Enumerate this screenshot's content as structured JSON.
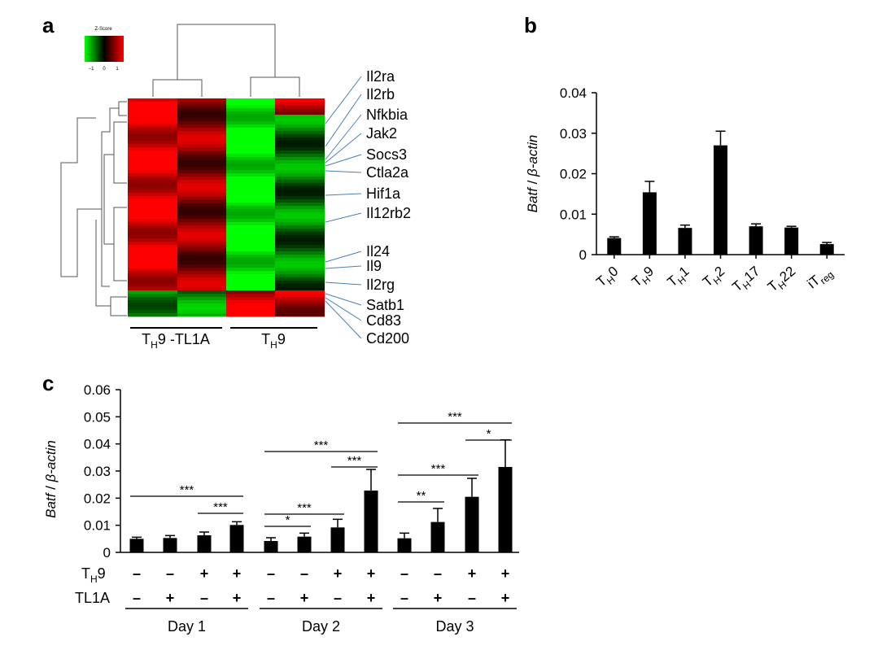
{
  "panels": {
    "a": "a",
    "b": "b",
    "c": "c"
  },
  "heatmap": {
    "legend_title": "Z-Score",
    "legend_ticks": [
      "−1",
      "0",
      "1"
    ],
    "colors": {
      "low": "#00ff00",
      "mid": "#000000",
      "high": "#ff0000"
    },
    "group_labels": [
      {
        "main": "T",
        "sub": "H",
        "rest": "9 -TL1A"
      },
      {
        "main": "T",
        "sub": "H",
        "rest": "9"
      }
    ],
    "genes": [
      "Il2ra",
      "Il2rb",
      "Nfkbia",
      "Jak2",
      "Socs3",
      "Ctla2a",
      "Hif1a",
      "Il12rb2",
      "Il24",
      "Il9",
      "Il2rg",
      "Satb1",
      "Cd83",
      "Cd200"
    ]
  },
  "chart_data": [
    {
      "panel": "b",
      "type": "bar",
      "categories": [
        {
          "main": "T",
          "sub": "H",
          "rest": "0"
        },
        {
          "main": "T",
          "sub": "H",
          "rest": "9"
        },
        {
          "main": "T",
          "sub": "H",
          "rest": "1"
        },
        {
          "main": "T",
          "sub": "H",
          "rest": "2"
        },
        {
          "main": "T",
          "sub": "H",
          "rest": "17"
        },
        {
          "main": "T",
          "sub": "H",
          "rest": "22"
        },
        {
          "main": "iT",
          "sub": "reg",
          "rest": ""
        }
      ],
      "values": [
        0.0041,
        0.0154,
        0.0066,
        0.027,
        0.007,
        0.0067,
        0.0026
      ],
      "errors": [
        0.0003,
        0.0027,
        0.0007,
        0.0035,
        0.0006,
        0.0003,
        0.0004
      ],
      "ylim": [
        0,
        0.04
      ],
      "yticks": [
        "0",
        "0.01",
        "0.02",
        "0.03",
        "0.04"
      ],
      "ylabel": {
        "italic1": "Batf",
        "sep": " / ",
        "italic2": "β-actin"
      }
    },
    {
      "panel": "c",
      "type": "bar",
      "values": [
        0.005,
        0.0053,
        0.0063,
        0.0101,
        0.0042,
        0.0058,
        0.0092,
        0.0228,
        0.0052,
        0.0112,
        0.0205,
        0.0315
      ],
      "errors": [
        0.0006,
        0.0009,
        0.0012,
        0.0012,
        0.0012,
        0.0013,
        0.003,
        0.0078,
        0.0019,
        0.005,
        0.0068,
        0.01
      ],
      "ylim": [
        0,
        0.06
      ],
      "yticks": [
        "0",
        "0.01",
        "0.02",
        "0.03",
        "0.04",
        "0.05",
        "0.06"
      ],
      "ylabel": {
        "italic1": "Batf",
        "sep": " / ",
        "italic2": "β-actin"
      },
      "row_labels": [
        {
          "main": "T",
          "sub": "H",
          "rest": "9"
        },
        {
          "main": "TL1A",
          "sub": "",
          "rest": ""
        }
      ],
      "th9_signs": [
        "–",
        "–",
        "+",
        "+",
        "–",
        "–",
        "+",
        "+",
        "–",
        "–",
        "+",
        "+"
      ],
      "tl1a_signs": [
        "–",
        "+",
        "–",
        "+",
        "–",
        "+",
        "–",
        "+",
        "–",
        "+",
        "–",
        "+"
      ],
      "days": [
        "Day 1",
        "Day 2",
        "Day 3"
      ],
      "significance": [
        {
          "from": 0,
          "to": 3,
          "label": "***"
        },
        {
          "from": 2,
          "to": 3,
          "label": "***"
        },
        {
          "from": 4,
          "to": 5,
          "label": "*"
        },
        {
          "from": 4,
          "to": 6,
          "label": "***"
        },
        {
          "from": 4,
          "to": 7,
          "label": "***"
        },
        {
          "from": 6,
          "to": 7,
          "label": "***"
        },
        {
          "from": 8,
          "to": 9,
          "label": "**"
        },
        {
          "from": 8,
          "to": 10,
          "label": "***"
        },
        {
          "from": 8,
          "to": 11,
          "label": "***"
        },
        {
          "from": 10,
          "to": 11,
          "label": "*"
        }
      ]
    }
  ]
}
